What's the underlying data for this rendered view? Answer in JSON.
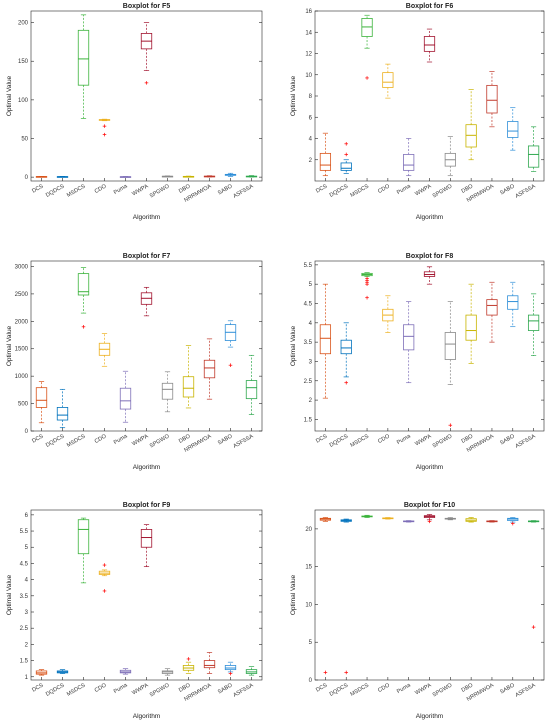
{
  "chart_data": [
    {
      "type": "boxplot",
      "title": "Boxplot for F5",
      "xlabel": "Algorithm",
      "ylabel": "Optimal Value",
      "ylim": [
        -5,
        215
      ],
      "yticks": [
        0,
        50,
        100,
        150,
        200
      ],
      "categories": [
        "DCS",
        "DQDCS",
        "MSDCS",
        "CDO",
        "Puma",
        "WWPA",
        "SPGWO",
        "DBO",
        "NRRMWOA",
        "SABO",
        "ASFSSA"
      ],
      "boxes": [
        {
          "min": 0.2,
          "q1": 0.5,
          "median": 0.6,
          "q3": 0.8,
          "max": 1.0,
          "outliers": []
        },
        {
          "min": 0.2,
          "q1": 0.4,
          "median": 0.5,
          "q3": 0.7,
          "max": 1.0,
          "outliers": []
        },
        {
          "min": 76,
          "q1": 119,
          "median": 153,
          "q3": 190,
          "max": 210,
          "outliers": []
        },
        {
          "min": 73,
          "q1": 73.5,
          "median": 74,
          "q3": 74.5,
          "max": 75,
          "outliers": [
            66,
            55
          ]
        },
        {
          "min": 0.1,
          "q1": 0.3,
          "median": 0.4,
          "q3": 0.6,
          "max": 0.8,
          "outliers": []
        },
        {
          "min": 138,
          "q1": 166,
          "median": 176,
          "q3": 186,
          "max": 200,
          "outliers": [
            122
          ]
        },
        {
          "min": 0.5,
          "q1": 0.8,
          "median": 1.0,
          "q3": 1.2,
          "max": 1.6,
          "outliers": []
        },
        {
          "min": 0.2,
          "q1": 0.6,
          "median": 0.8,
          "q3": 1.0,
          "max": 1.3,
          "outliers": []
        },
        {
          "min": 0.3,
          "q1": 0.7,
          "median": 1.0,
          "q3": 1.3,
          "max": 1.8,
          "outliers": []
        },
        {
          "min": 1.0,
          "q1": 2.3,
          "median": 3.0,
          "q3": 3.6,
          "max": 5.0,
          "outliers": []
        },
        {
          "min": 0.2,
          "q1": 0.6,
          "median": 0.9,
          "q3": 1.3,
          "max": 2.0,
          "outliers": []
        }
      ]
    },
    {
      "type": "boxplot",
      "title": "Boxplot for F6",
      "xlabel": "Algorithm",
      "ylabel": "Optimal Value",
      "ylim": [
        0,
        16
      ],
      "yticks": [
        2,
        4,
        6,
        8,
        10,
        12,
        14,
        16
      ],
      "categories": [
        "DCS",
        "DQDCS",
        "MSDCS",
        "CDO",
        "Puma",
        "WWPA",
        "SPGWO",
        "DBO",
        "NRRMWOA",
        "SABO",
        "ASFSSA"
      ],
      "boxes": [
        {
          "min": 0.5,
          "q1": 1.0,
          "median": 1.5,
          "q3": 2.6,
          "max": 4.5,
          "outliers": []
        },
        {
          "min": 0.7,
          "q1": 1.0,
          "median": 1.2,
          "q3": 1.7,
          "max": 2.0,
          "outliers": [
            2.5,
            3.5
          ]
        },
        {
          "min": 12.5,
          "q1": 13.6,
          "median": 14.5,
          "q3": 15.3,
          "max": 15.6,
          "outliers": [
            9.7
          ]
        },
        {
          "min": 7.8,
          "q1": 8.8,
          "median": 9.3,
          "q3": 10.2,
          "max": 11.0,
          "outliers": []
        },
        {
          "min": 0.5,
          "q1": 1.0,
          "median": 1.5,
          "q3": 2.5,
          "max": 4.0,
          "outliers": []
        },
        {
          "min": 11.2,
          "q1": 12.2,
          "median": 12.8,
          "q3": 13.6,
          "max": 14.3,
          "outliers": []
        },
        {
          "min": 0.5,
          "q1": 1.4,
          "median": 2.0,
          "q3": 2.6,
          "max": 4.2,
          "outliers": []
        },
        {
          "min": 2.0,
          "q1": 3.2,
          "median": 4.3,
          "q3": 5.3,
          "max": 8.6,
          "outliers": []
        },
        {
          "min": 5.1,
          "q1": 6.4,
          "median": 7.6,
          "q3": 9.0,
          "max": 10.3,
          "outliers": []
        },
        {
          "min": 2.9,
          "q1": 4.1,
          "median": 4.7,
          "q3": 5.6,
          "max": 6.9,
          "outliers": []
        },
        {
          "min": 0.9,
          "q1": 1.3,
          "median": 2.5,
          "q3": 3.3,
          "max": 5.1,
          "outliers": []
        }
      ]
    },
    {
      "type": "boxplot",
      "title": "Boxplot for F7",
      "xlabel": "Algorithm",
      "ylabel": "Optimal Value",
      "ylim": [
        0,
        3100
      ],
      "yticks": [
        0,
        500,
        1000,
        1500,
        2000,
        2500,
        3000
      ],
      "categories": [
        "DCS",
        "DQDCS",
        "MSDCS",
        "CDO",
        "Puma",
        "WWPA",
        "SPGWO",
        "DBO",
        "NRRMWOA",
        "SABO",
        "ASFSSA"
      ],
      "boxes": [
        {
          "min": 150,
          "q1": 430,
          "median": 560,
          "q3": 790,
          "max": 900,
          "outliers": []
        },
        {
          "min": 60,
          "q1": 200,
          "median": 290,
          "q3": 430,
          "max": 760,
          "outliers": []
        },
        {
          "min": 2150,
          "q1": 2480,
          "median": 2540,
          "q3": 2870,
          "max": 2980,
          "outliers": [
            1900
          ]
        },
        {
          "min": 1180,
          "q1": 1380,
          "median": 1490,
          "q3": 1600,
          "max": 1780,
          "outliers": []
        },
        {
          "min": 160,
          "q1": 400,
          "median": 550,
          "q3": 780,
          "max": 1090,
          "outliers": []
        },
        {
          "min": 2100,
          "q1": 2310,
          "median": 2420,
          "q3": 2520,
          "max": 2620,
          "outliers": []
        },
        {
          "min": 350,
          "q1": 580,
          "median": 760,
          "q3": 870,
          "max": 1080,
          "outliers": []
        },
        {
          "min": 420,
          "q1": 620,
          "median": 780,
          "q3": 990,
          "max": 1560,
          "outliers": []
        },
        {
          "min": 580,
          "q1": 970,
          "median": 1150,
          "q3": 1290,
          "max": 1680,
          "outliers": []
        },
        {
          "min": 1530,
          "q1": 1650,
          "median": 1800,
          "q3": 1940,
          "max": 2010,
          "outliers": [
            1200
          ]
        },
        {
          "min": 300,
          "q1": 590,
          "median": 790,
          "q3": 920,
          "max": 1380,
          "outliers": []
        }
      ]
    },
    {
      "type": "boxplot",
      "title": "Boxplot for F8",
      "xlabel": "Algorithm",
      "ylabel": "Optimal Value",
      "ylim": [
        1.2,
        5.6
      ],
      "yticks": [
        1.5,
        2,
        2.5,
        3,
        3.5,
        4,
        4.5,
        5,
        5.5
      ],
      "categories": [
        "DCS",
        "DQDCS",
        "MSDCS",
        "CDO",
        "Puma",
        "WWPA",
        "SPGWO",
        "DBO",
        "NRRMWOA",
        "SABO",
        "ASFSSA"
      ],
      "boxes": [
        {
          "min": 2.05,
          "q1": 3.2,
          "median": 3.6,
          "q3": 3.95,
          "max": 5.0,
          "outliers": []
        },
        {
          "min": 2.6,
          "q1": 3.2,
          "median": 3.35,
          "q3": 3.55,
          "max": 4.0,
          "outliers": [
            2.45
          ]
        },
        {
          "min": 5.2,
          "q1": 5.22,
          "median": 5.25,
          "q3": 5.28,
          "max": 5.3,
          "outliers": [
            5.0,
            5.05,
            5.1,
            5.15,
            4.65
          ]
        },
        {
          "min": 3.75,
          "q1": 4.05,
          "median": 4.2,
          "q3": 4.35,
          "max": 4.7,
          "outliers": []
        },
        {
          "min": 2.45,
          "q1": 3.3,
          "median": 3.65,
          "q3": 3.95,
          "max": 4.55,
          "outliers": []
        },
        {
          "min": 5.0,
          "q1": 5.2,
          "median": 5.25,
          "q3": 5.32,
          "max": 5.45,
          "outliers": []
        },
        {
          "min": 2.4,
          "q1": 3.05,
          "median": 3.45,
          "q3": 3.75,
          "max": 4.55,
          "outliers": [
            1.35
          ]
        },
        {
          "min": 2.95,
          "q1": 3.55,
          "median": 3.8,
          "q3": 4.2,
          "max": 5.0,
          "outliers": []
        },
        {
          "min": 3.5,
          "q1": 4.2,
          "median": 4.45,
          "q3": 4.6,
          "max": 5.05,
          "outliers": []
        },
        {
          "min": 3.9,
          "q1": 4.35,
          "median": 4.55,
          "q3": 4.7,
          "max": 5.05,
          "outliers": []
        },
        {
          "min": 3.15,
          "q1": 3.8,
          "median": 4.05,
          "q3": 4.2,
          "max": 4.75,
          "outliers": []
        }
      ]
    },
    {
      "type": "boxplot",
      "title": "Boxplot for F9",
      "xlabel": "Algorithm",
      "ylabel": "Optimal Value",
      "ylim": [
        0.9,
        6.15
      ],
      "yticks": [
        1,
        1.5,
        2,
        2.5,
        3,
        3.5,
        4,
        4.5,
        5,
        5.5,
        6
      ],
      "categories": [
        "DCS",
        "DQDCS",
        "MSDCS",
        "CDO",
        "Puma",
        "WWPA",
        "SPGWO",
        "DBO",
        "NRRMWOA",
        "SABO",
        "ASFSSA"
      ],
      "boxes": [
        {
          "min": 1.05,
          "q1": 1.08,
          "median": 1.12,
          "q3": 1.18,
          "max": 1.22,
          "outliers": []
        },
        {
          "min": 1.1,
          "q1": 1.12,
          "median": 1.15,
          "q3": 1.18,
          "max": 1.22,
          "outliers": []
        },
        {
          "min": 3.9,
          "q1": 4.8,
          "median": 5.55,
          "q3": 5.85,
          "max": 5.9,
          "outliers": []
        },
        {
          "min": 4.12,
          "q1": 4.16,
          "median": 4.2,
          "q3": 4.26,
          "max": 4.3,
          "outliers": [
            4.45,
            3.65
          ]
        },
        {
          "min": 1.08,
          "q1": 1.12,
          "median": 1.15,
          "q3": 1.2,
          "max": 1.25,
          "outliers": []
        },
        {
          "min": 4.4,
          "q1": 5.0,
          "median": 5.3,
          "q3": 5.55,
          "max": 5.7,
          "outliers": []
        },
        {
          "min": 1.05,
          "q1": 1.1,
          "median": 1.15,
          "q3": 1.18,
          "max": 1.25,
          "outliers": []
        },
        {
          "min": 1.1,
          "q1": 1.2,
          "median": 1.27,
          "q3": 1.35,
          "max": 1.45,
          "outliers": [
            1.55
          ]
        },
        {
          "min": 1.1,
          "q1": 1.28,
          "median": 1.35,
          "q3": 1.5,
          "max": 1.75,
          "outliers": []
        },
        {
          "min": 1.15,
          "q1": 1.22,
          "median": 1.27,
          "q3": 1.35,
          "max": 1.45,
          "outliers": [
            1.1
          ]
        },
        {
          "min": 1.05,
          "q1": 1.1,
          "median": 1.15,
          "q3": 1.22,
          "max": 1.32,
          "outliers": []
        }
      ]
    },
    {
      "type": "boxplot",
      "title": "Boxplot for F10",
      "xlabel": "Algorithm",
      "ylabel": "Optimal Value",
      "ylim": [
        0,
        22.5
      ],
      "yticks": [
        0,
        5,
        10,
        15,
        20
      ],
      "categories": [
        "DCS",
        "DQDCS",
        "MSDCS",
        "CDO",
        "Puma",
        "WWPA",
        "SPGWO",
        "DBO",
        "NRRMWOA",
        "SABO",
        "ASFSSA"
      ],
      "boxes": [
        {
          "min": 21.0,
          "q1": 21.15,
          "median": 21.3,
          "q3": 21.4,
          "max": 21.5,
          "outliers": [
            1.0
          ]
        },
        {
          "min": 20.9,
          "q1": 21.0,
          "median": 21.1,
          "q3": 21.2,
          "max": 21.3,
          "outliers": [
            1.0
          ]
        },
        {
          "min": 21.5,
          "q1": 21.6,
          "median": 21.65,
          "q3": 21.7,
          "max": 21.8,
          "outliers": []
        },
        {
          "min": 21.3,
          "q1": 21.35,
          "median": 21.4,
          "q3": 21.45,
          "max": 21.5,
          "outliers": []
        },
        {
          "min": 20.9,
          "q1": 20.95,
          "median": 21.0,
          "q3": 21.05,
          "max": 21.1,
          "outliers": []
        },
        {
          "min": 21.2,
          "q1": 21.5,
          "median": 21.65,
          "q3": 21.75,
          "max": 21.9,
          "outliers": [
            21.0
          ]
        },
        {
          "min": 21.2,
          "q1": 21.3,
          "median": 21.35,
          "q3": 21.4,
          "max": 21.5,
          "outliers": []
        },
        {
          "min": 20.9,
          "q1": 21.0,
          "median": 21.15,
          "q3": 21.35,
          "max": 21.5,
          "outliers": []
        },
        {
          "min": 20.9,
          "q1": 20.95,
          "median": 21.0,
          "q3": 21.05,
          "max": 21.1,
          "outliers": []
        },
        {
          "min": 20.9,
          "q1": 21.1,
          "median": 21.3,
          "q3": 21.4,
          "max": 21.5,
          "outliers": [
            20.7
          ]
        },
        {
          "min": 20.9,
          "q1": 20.95,
          "median": 21.0,
          "q3": 21.05,
          "max": 21.1,
          "outliers": [
            7.0
          ]
        }
      ]
    }
  ],
  "colors": [
    "#d95319",
    "#0072bd",
    "#3bb33b",
    "#edb120",
    "#7e6fb8",
    "#a2142f",
    "#8a8a8a",
    "#c8b400",
    "#c0392b",
    "#2f8fd8",
    "#2fa84f"
  ],
  "outlier_color": "#ff0000"
}
